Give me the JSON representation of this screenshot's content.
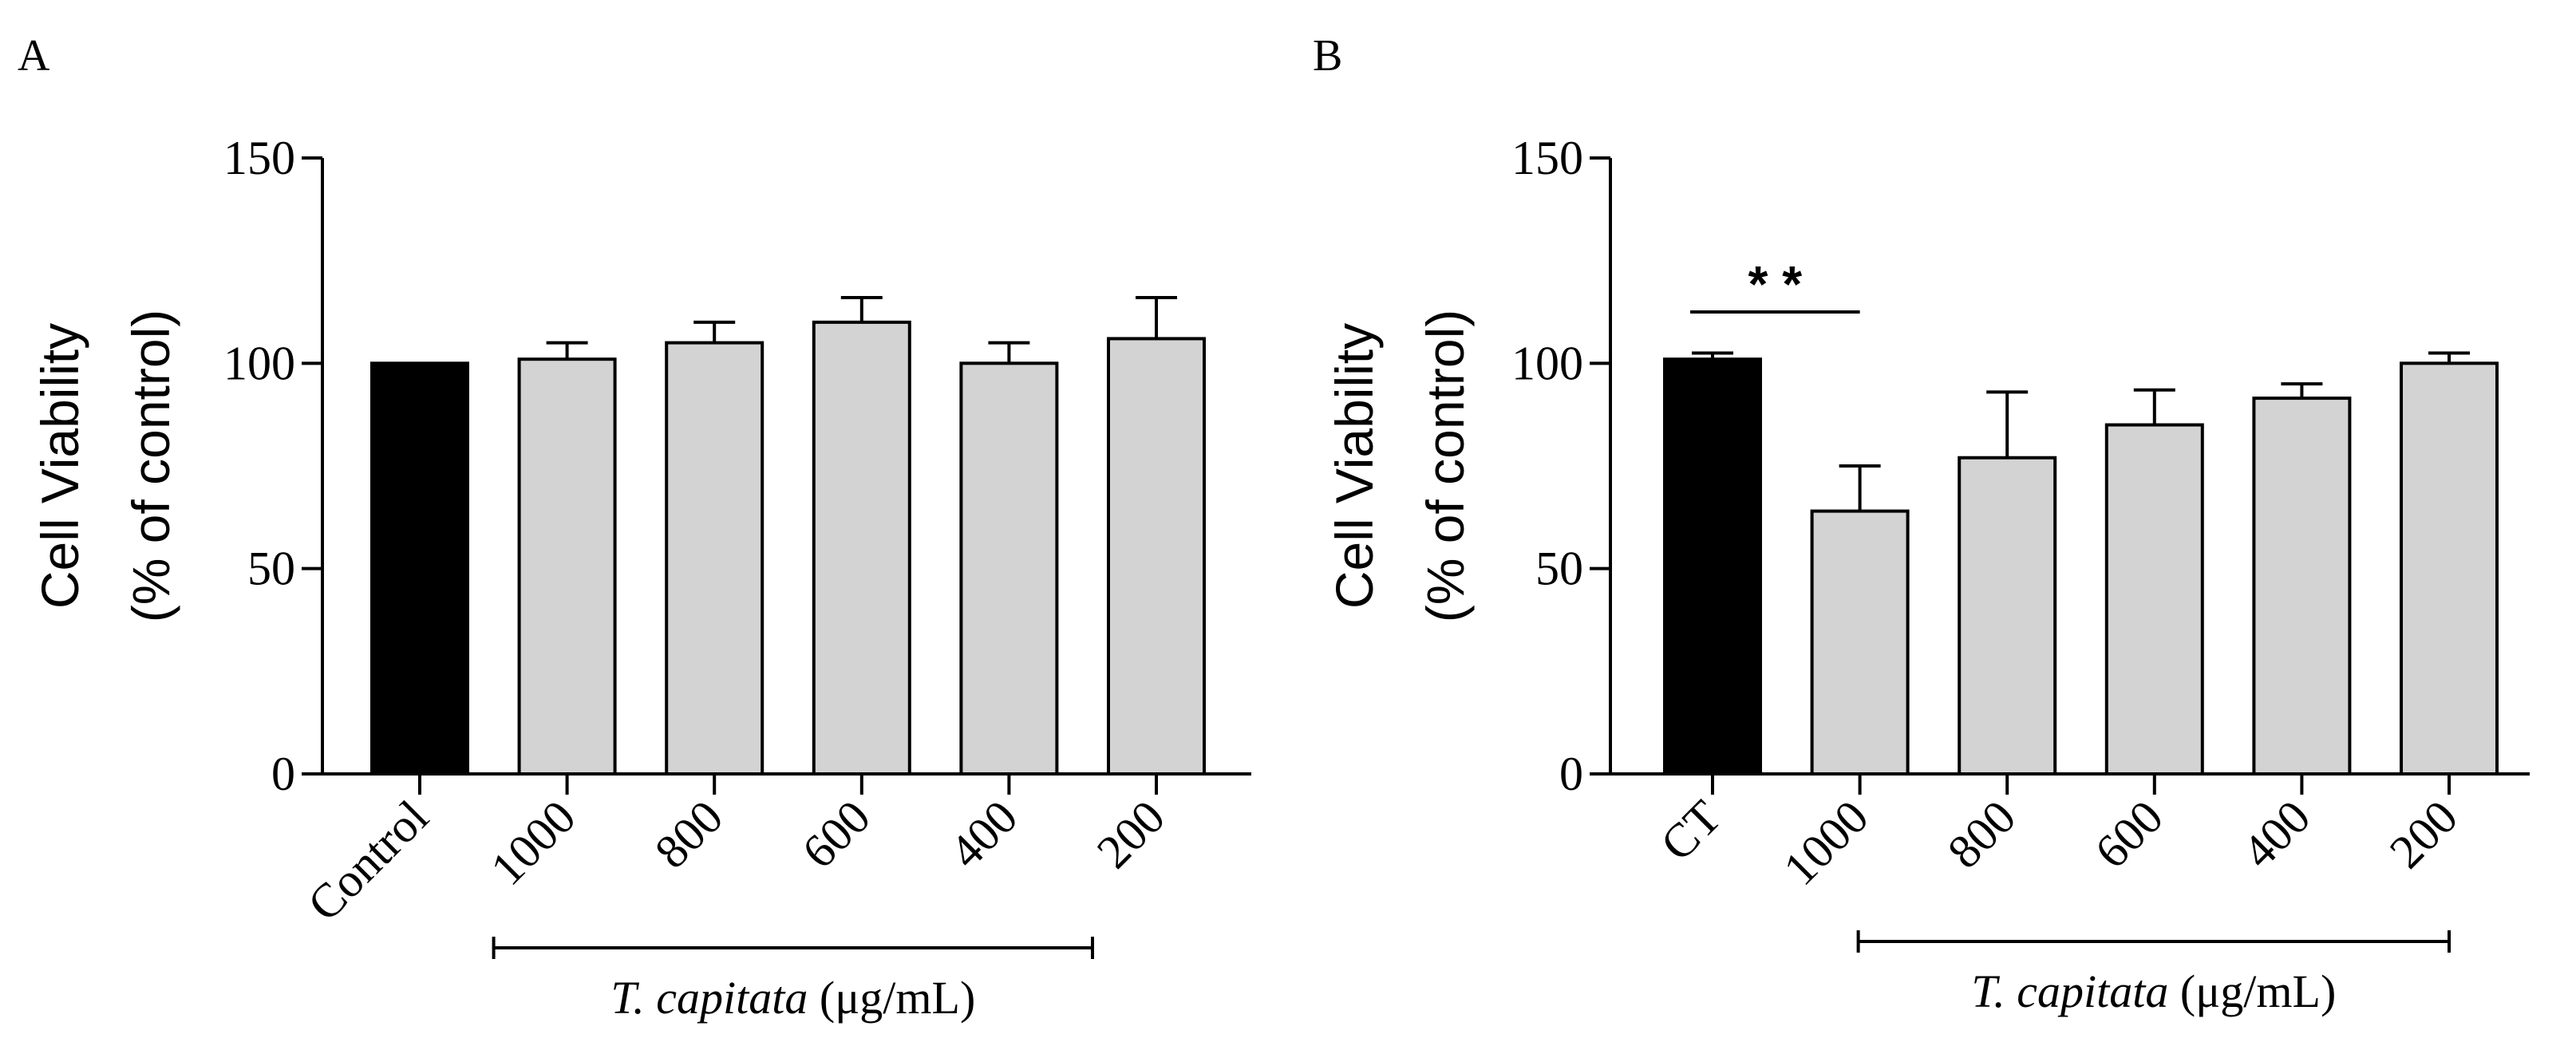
{
  "chart_data": [
    {
      "panel": "A",
      "type": "bar",
      "ylabel": "Cell Viability",
      "ylabel_sub": "(% of control)",
      "ylim": [
        0,
        150
      ],
      "yticks": [
        0,
        50,
        100,
        150
      ],
      "categories": [
        "Control",
        "1000",
        "800",
        "600",
        "400",
        "200"
      ],
      "values": [
        100,
        101,
        105,
        110,
        100,
        106
      ],
      "errors": [
        0,
        4,
        5,
        6,
        5,
        10
      ],
      "bar_colors": [
        "#000000",
        "#d3d3d3",
        "#d3d3d3",
        "#d3d3d3",
        "#d3d3d3",
        "#d3d3d3"
      ],
      "group_bracket": {
        "from": "1000",
        "to": "200",
        "label_italic": "T. capitata",
        "label_unit": " (μg/mL)"
      },
      "significance": []
    },
    {
      "panel": "B",
      "type": "bar",
      "ylabel": "Cell Viability",
      "ylabel_sub": "(% of control)",
      "ylim": [
        0,
        150
      ],
      "yticks": [
        0,
        50,
        100,
        150
      ],
      "categories": [
        "CT",
        "1000",
        "800",
        "600",
        "400",
        "200"
      ],
      "values": [
        101,
        64,
        77,
        85,
        91.5,
        100
      ],
      "errors": [
        1.5,
        11,
        16,
        8.5,
        3.5,
        2.5
      ],
      "bar_colors": [
        "#000000",
        "#d3d3d3",
        "#d3d3d3",
        "#d3d3d3",
        "#d3d3d3",
        "#d3d3d3"
      ],
      "group_bracket": {
        "from": "1000",
        "to": "200",
        "label_italic": "T. capitata",
        "label_unit": " (μg/mL)"
      },
      "significance": [
        {
          "from": "CT",
          "to": "1000",
          "label": "* *"
        }
      ]
    }
  ]
}
